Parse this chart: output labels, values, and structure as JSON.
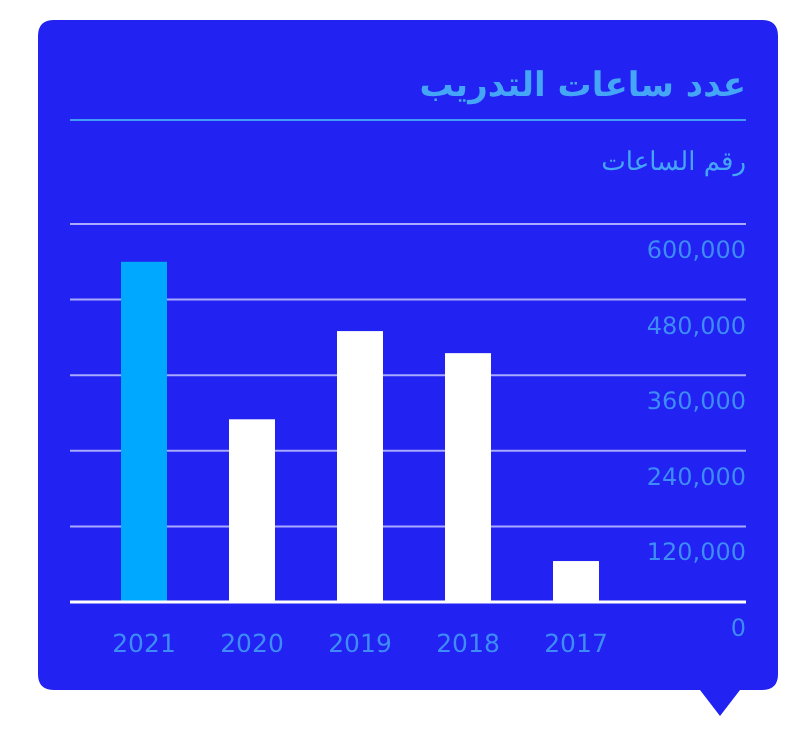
{
  "chart_data": {
    "type": "bar",
    "title": "عدد ساعات التدريب",
    "ylabel": "رقم الساعات",
    "categories": [
      "2021",
      "2020",
      "2019",
      "2018",
      "2017"
    ],
    "values": [
      540000,
      290000,
      430000,
      395000,
      65000
    ],
    "colors": [
      "#00a8ff",
      "#ffffff",
      "#ffffff",
      "#ffffff",
      "#ffffff"
    ],
    "ylim": [
      0,
      600000
    ],
    "yticks": [
      0,
      {
        "value": 120000,
        "label": "120,000"
      },
      {
        "value": 240000,
        "label": "240,000"
      },
      {
        "value": 360000,
        "label": "360,000"
      },
      {
        "value": 480000,
        "label": "480,000"
      },
      {
        "value": 600000,
        "label": "600,000"
      }
    ],
    "grid": "y"
  }
}
